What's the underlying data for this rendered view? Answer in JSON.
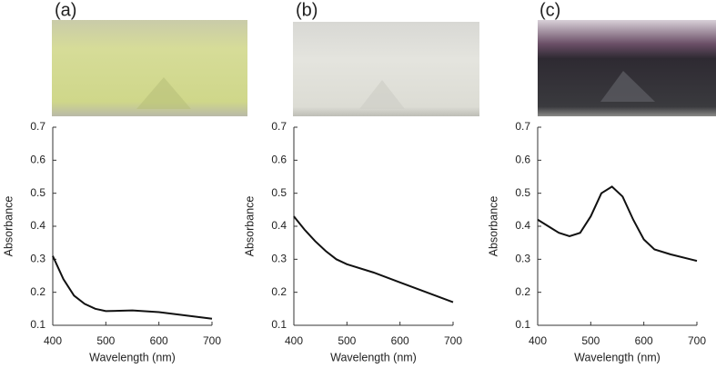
{
  "chart_data": [
    {
      "type": "line",
      "panel": "(a)",
      "x_label": "Wavelength (nm)",
      "y_label": "Absorbance",
      "x": [
        400,
        420,
        440,
        460,
        480,
        500,
        550,
        600,
        650,
        700
      ],
      "values": [
        0.31,
        0.24,
        0.19,
        0.165,
        0.15,
        0.143,
        0.145,
        0.14,
        0.13,
        0.12
      ],
      "color": "#111111",
      "xlim": [
        400,
        700
      ],
      "ylim": [
        0.1,
        0.7
      ],
      "xticks": [
        400,
        500,
        600,
        700
      ],
      "yticks": [
        0.1,
        0.2,
        0.3,
        0.4,
        0.5,
        0.6,
        0.7
      ]
    },
    {
      "type": "line",
      "panel": "(b)",
      "x_label": "Wavelength (nm)",
      "y_label": "Absorbance",
      "x": [
        400,
        420,
        440,
        460,
        480,
        500,
        550,
        600,
        650,
        700
      ],
      "values": [
        0.43,
        0.39,
        0.355,
        0.325,
        0.3,
        0.285,
        0.26,
        0.23,
        0.2,
        0.17
      ],
      "color": "#111111",
      "xlim": [
        400,
        700
      ],
      "ylim": [
        0.1,
        0.7
      ],
      "xticks": [
        400,
        500,
        600,
        700
      ],
      "yticks": [
        0.1,
        0.2,
        0.3,
        0.4,
        0.5,
        0.6,
        0.7
      ]
    },
    {
      "type": "line",
      "panel": "(c)",
      "x_label": "Wavelength (nm)",
      "y_label": "Absorbance",
      "x": [
        400,
        420,
        440,
        460,
        480,
        500,
        520,
        540,
        560,
        580,
        600,
        620,
        650,
        700
      ],
      "values": [
        0.42,
        0.4,
        0.38,
        0.37,
        0.38,
        0.43,
        0.5,
        0.52,
        0.49,
        0.42,
        0.36,
        0.33,
        0.315,
        0.295
      ],
      "color": "#111111",
      "xlim": [
        400,
        700
      ],
      "ylim": [
        0.1,
        0.7
      ],
      "xticks": [
        400,
        500,
        600,
        700
      ],
      "yticks": [
        0.1,
        0.2,
        0.3,
        0.4,
        0.5,
        0.6,
        0.7
      ]
    }
  ]
}
